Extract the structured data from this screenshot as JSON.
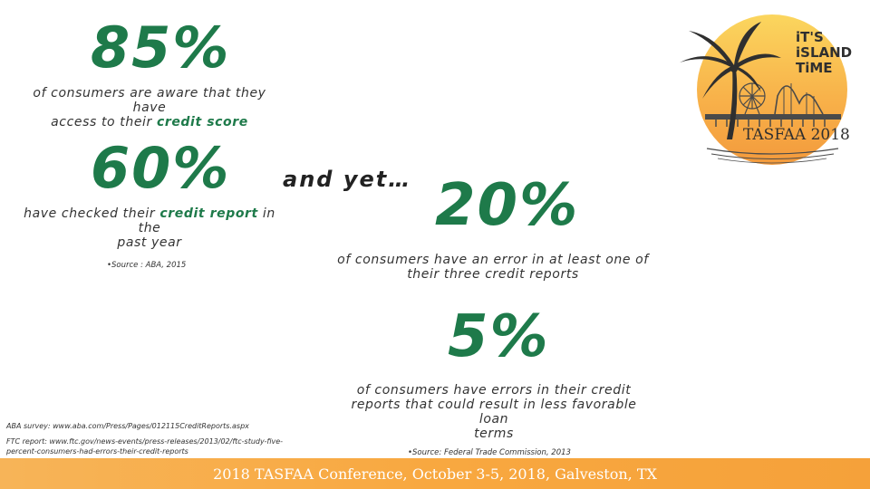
{
  "stats": {
    "s1": {
      "value": "85%",
      "line1": "of consumers are aware that they have",
      "line2_pre": "access to their ",
      "line2_hl": "credit score"
    },
    "s2": {
      "value": "60%",
      "line1_pre": "have checked their ",
      "line1_hl": "credit report",
      "line1_post": " in the",
      "line2": "past year"
    },
    "s3": {
      "value": "20%",
      "line1": "of consumers have an error in at least one of",
      "line2": "their three credit reports"
    },
    "s4": {
      "value": "5%",
      "line1": "of consumers have errors in their credit",
      "line2": "reports that could result in less favorable loan",
      "line3": "terms"
    }
  },
  "and_yet": "and yet…",
  "source_aba": "•Source : ABA, 2015",
  "source_ftc": "•Source: Federal Trade Commission, 2013",
  "references": {
    "aba": "ABA survey: www.aba.com/Press/Pages/012115CreditReports.aspx",
    "ftc_line1": "FTC report: www.ftc.gov/news-events/press-releases/2013/02/ftc-study-five-",
    "ftc_line2": "percent-consumers-had-errors-their-credit-reports"
  },
  "logo": {
    "tagline_1": "iT'S",
    "tagline_2": "iSLAND",
    "tagline_3": "TiME",
    "name": "TASFAA 2018"
  },
  "footer": {
    "text": "2018 TASFAA Conference, October 3-5, 2018, Galveston, TX"
  },
  "colors": {
    "accent_green": "#1e7a4a",
    "footer_orange": "#f8a840",
    "logo_orange": "#f7a541",
    "logo_yellow": "#f9d35a"
  }
}
